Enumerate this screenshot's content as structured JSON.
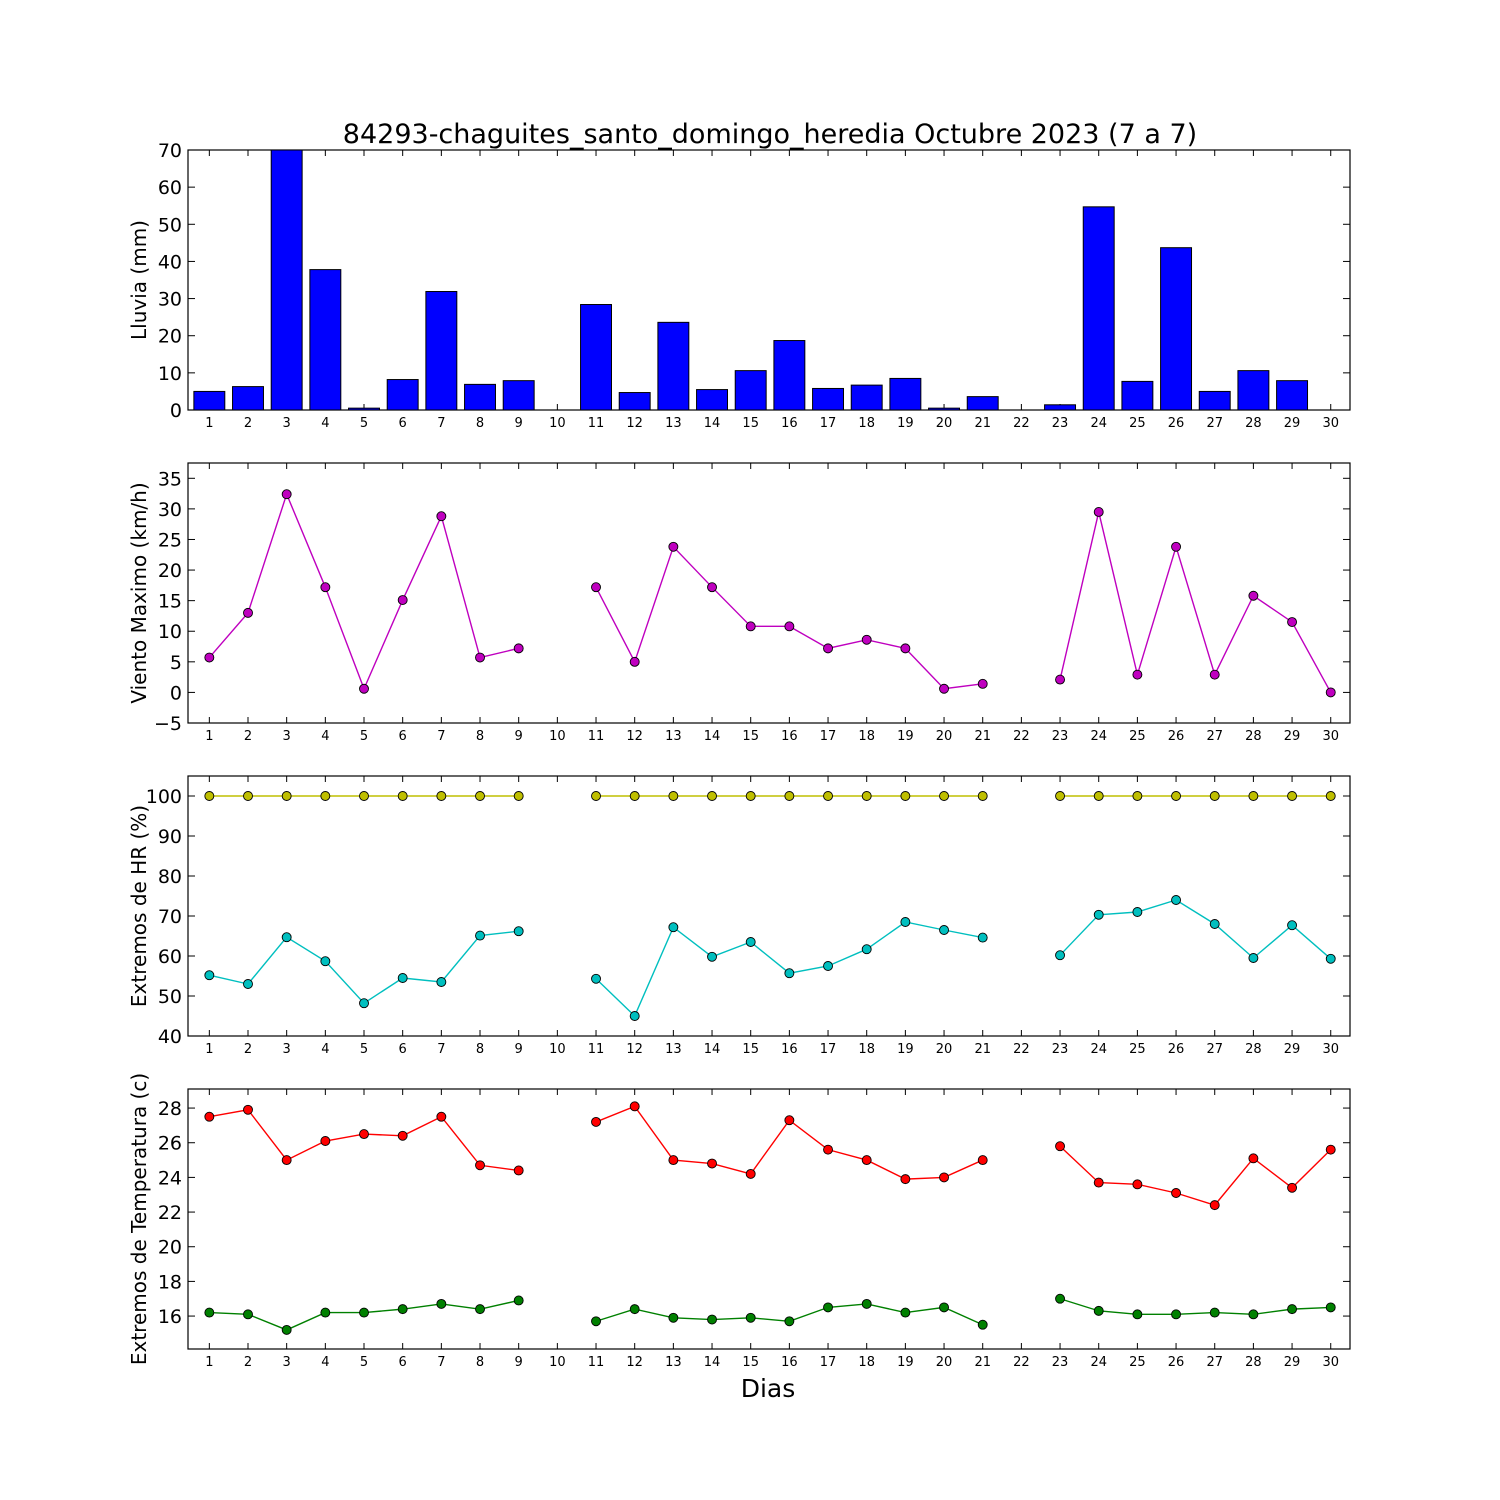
{
  "title": "84293-chaguites_santo_domingo_heredia Octubre 2023  (7 a 7)",
  "xlabel": "Dias",
  "days": [
    1,
    2,
    3,
    4,
    5,
    6,
    7,
    8,
    9,
    10,
    11,
    12,
    13,
    14,
    15,
    16,
    17,
    18,
    19,
    20,
    21,
    22,
    23,
    24,
    25,
    26,
    27,
    28,
    29,
    30
  ],
  "colors": {
    "rain": "#0000ff",
    "wind": "#bf00bf",
    "hr_max": "#bfbf00",
    "hr_min": "#00bfbf",
    "temp_max": "#ff0000",
    "temp_min": "#008000"
  },
  "chart_data": [
    {
      "type": "bar",
      "ylabel": "Lluvia (mm)",
      "ylim": [
        0,
        70
      ],
      "yticks": [
        0,
        10,
        20,
        30,
        40,
        50,
        60,
        70
      ],
      "series": [
        {
          "values": [
            5.0,
            6.3,
            70.0,
            37.8,
            0.5,
            8.2,
            31.9,
            6.9,
            7.9,
            null,
            28.4,
            4.7,
            23.6,
            5.5,
            10.6,
            18.7,
            5.8,
            6.7,
            8.5,
            0.5,
            3.6,
            null,
            1.4,
            54.7,
            7.7,
            43.7,
            5.0,
            10.6,
            7.9,
            null
          ]
        }
      ]
    },
    {
      "type": "line",
      "ylabel": "Viento Maximo (km/h)",
      "ylim": [
        -5,
        37.5
      ],
      "yticks": [
        -5,
        0,
        5,
        10,
        15,
        20,
        25,
        30,
        35
      ],
      "series": [
        {
          "values": [
            5.7,
            13.0,
            32.4,
            17.2,
            0.6,
            15.1,
            28.8,
            5.7,
            7.2,
            null,
            17.2,
            5.0,
            23.8,
            17.2,
            10.8,
            10.8,
            7.2,
            8.6,
            7.2,
            0.6,
            1.4,
            null,
            2.1,
            29.5,
            2.9,
            23.8,
            2.9,
            15.8,
            11.5,
            0.0
          ]
        }
      ]
    },
    {
      "type": "line",
      "ylabel": "Extremos de HR (%)",
      "ylim": [
        40,
        105
      ],
      "yticks": [
        40,
        50,
        60,
        70,
        80,
        90,
        100
      ],
      "series": [
        {
          "values": [
            100,
            100,
            100,
            100,
            100,
            100,
            100,
            100,
            100,
            null,
            100,
            100,
            100,
            100,
            100,
            100,
            100,
            100,
            100,
            100,
            100,
            null,
            100,
            100,
            100,
            100,
            100,
            100,
            100,
            100
          ]
        },
        {
          "values": [
            55.2,
            53.0,
            64.7,
            58.7,
            48.2,
            54.5,
            53.5,
            65.1,
            66.2,
            null,
            54.3,
            45.0,
            67.2,
            59.8,
            63.5,
            55.7,
            57.5,
            61.7,
            68.5,
            66.5,
            64.6,
            null,
            60.2,
            70.3,
            71.0,
            74.0,
            68.0,
            59.5,
            67.7,
            59.3
          ]
        }
      ]
    },
    {
      "type": "line",
      "ylabel": "Extremos de Temperatura (c)",
      "ylim": [
        14.1,
        29.1
      ],
      "yticks": [
        16,
        18,
        20,
        22,
        24,
        26,
        28
      ],
      "series": [
        {
          "values": [
            27.5,
            27.9,
            25.0,
            26.1,
            26.5,
            26.4,
            27.5,
            24.7,
            24.4,
            null,
            27.2,
            28.1,
            25.0,
            24.8,
            24.2,
            27.3,
            25.6,
            25.0,
            23.9,
            24.0,
            25.0,
            null,
            25.8,
            23.7,
            23.6,
            23.1,
            22.4,
            25.1,
            23.4,
            25.6
          ]
        },
        {
          "values": [
            16.2,
            16.1,
            15.2,
            16.2,
            16.2,
            16.4,
            16.7,
            16.4,
            16.9,
            null,
            15.7,
            16.4,
            15.9,
            15.8,
            15.9,
            15.7,
            16.5,
            16.7,
            16.2,
            16.5,
            15.5,
            null,
            17.0,
            16.3,
            16.1,
            16.1,
            16.2,
            16.1,
            16.4,
            16.5
          ]
        }
      ]
    }
  ]
}
